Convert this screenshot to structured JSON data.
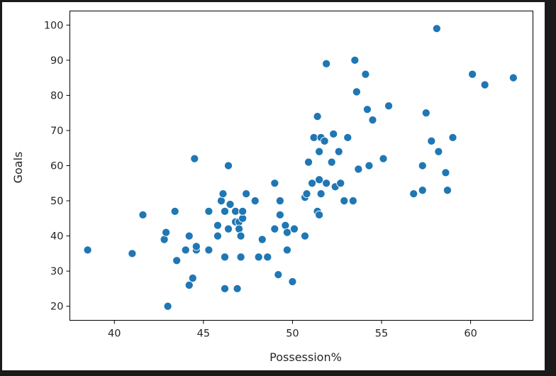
{
  "chart_data": {
    "type": "scatter",
    "title": "",
    "xlabel": "Possession%",
    "ylabel": "Goals",
    "xlim": [
      37.5,
      63.5
    ],
    "ylim": [
      16,
      104
    ],
    "xticks": [
      40,
      45,
      50,
      55,
      60
    ],
    "yticks": [
      20,
      30,
      40,
      50,
      60,
      70,
      80,
      90,
      100
    ],
    "grid": false,
    "legend": "none",
    "colors": {
      "point": "#1f77b4",
      "background": "#ffffff",
      "border": "#1a1a1a"
    },
    "points": [
      {
        "x": 38.5,
        "y": 36
      },
      {
        "x": 41.0,
        "y": 35
      },
      {
        "x": 41.6,
        "y": 46
      },
      {
        "x": 42.8,
        "y": 39
      },
      {
        "x": 42.9,
        "y": 41
      },
      {
        "x": 43.0,
        "y": 20
      },
      {
        "x": 43.4,
        "y": 47
      },
      {
        "x": 43.5,
        "y": 33
      },
      {
        "x": 44.0,
        "y": 36
      },
      {
        "x": 44.2,
        "y": 26
      },
      {
        "x": 44.2,
        "y": 40
      },
      {
        "x": 44.4,
        "y": 28
      },
      {
        "x": 44.5,
        "y": 62
      },
      {
        "x": 44.6,
        "y": 36
      },
      {
        "x": 44.6,
        "y": 37
      },
      {
        "x": 45.3,
        "y": 47
      },
      {
        "x": 45.3,
        "y": 36
      },
      {
        "x": 45.8,
        "y": 43
      },
      {
        "x": 45.8,
        "y": 40
      },
      {
        "x": 46.0,
        "y": 50
      },
      {
        "x": 46.1,
        "y": 52
      },
      {
        "x": 46.2,
        "y": 47
      },
      {
        "x": 46.2,
        "y": 34
      },
      {
        "x": 46.2,
        "y": 25
      },
      {
        "x": 46.4,
        "y": 42
      },
      {
        "x": 46.4,
        "y": 60
      },
      {
        "x": 46.5,
        "y": 49
      },
      {
        "x": 46.8,
        "y": 47
      },
      {
        "x": 46.8,
        "y": 44
      },
      {
        "x": 46.9,
        "y": 25
      },
      {
        "x": 47.0,
        "y": 44
      },
      {
        "x": 47.0,
        "y": 42
      },
      {
        "x": 47.1,
        "y": 34
      },
      {
        "x": 47.1,
        "y": 40
      },
      {
        "x": 47.2,
        "y": 45
      },
      {
        "x": 47.2,
        "y": 47
      },
      {
        "x": 47.4,
        "y": 52
      },
      {
        "x": 47.9,
        "y": 50
      },
      {
        "x": 48.1,
        "y": 34
      },
      {
        "x": 48.3,
        "y": 39
      },
      {
        "x": 48.6,
        "y": 34
      },
      {
        "x": 49.0,
        "y": 42
      },
      {
        "x": 49.0,
        "y": 55
      },
      {
        "x": 49.2,
        "y": 29
      },
      {
        "x": 49.3,
        "y": 46
      },
      {
        "x": 49.3,
        "y": 50
      },
      {
        "x": 49.6,
        "y": 43
      },
      {
        "x": 49.7,
        "y": 36
      },
      {
        "x": 49.7,
        "y": 41
      },
      {
        "x": 50.0,
        "y": 27
      },
      {
        "x": 50.1,
        "y": 42
      },
      {
        "x": 50.7,
        "y": 40
      },
      {
        "x": 50.7,
        "y": 51
      },
      {
        "x": 50.8,
        "y": 52
      },
      {
        "x": 50.9,
        "y": 61
      },
      {
        "x": 51.1,
        "y": 55
      },
      {
        "x": 51.2,
        "y": 68
      },
      {
        "x": 51.4,
        "y": 47
      },
      {
        "x": 51.4,
        "y": 74
      },
      {
        "x": 51.5,
        "y": 46
      },
      {
        "x": 51.5,
        "y": 56
      },
      {
        "x": 51.5,
        "y": 64
      },
      {
        "x": 51.6,
        "y": 68
      },
      {
        "x": 51.6,
        "y": 52
      },
      {
        "x": 51.8,
        "y": 67
      },
      {
        "x": 51.9,
        "y": 89
      },
      {
        "x": 51.9,
        "y": 55
      },
      {
        "x": 52.2,
        "y": 61
      },
      {
        "x": 52.3,
        "y": 69
      },
      {
        "x": 52.4,
        "y": 54
      },
      {
        "x": 52.6,
        "y": 64
      },
      {
        "x": 52.7,
        "y": 55
      },
      {
        "x": 52.9,
        "y": 50
      },
      {
        "x": 53.1,
        "y": 68
      },
      {
        "x": 53.4,
        "y": 50
      },
      {
        "x": 53.5,
        "y": 90
      },
      {
        "x": 53.6,
        "y": 81
      },
      {
        "x": 53.7,
        "y": 59
      },
      {
        "x": 54.1,
        "y": 86
      },
      {
        "x": 54.2,
        "y": 76
      },
      {
        "x": 54.3,
        "y": 60
      },
      {
        "x": 54.5,
        "y": 73
      },
      {
        "x": 55.1,
        "y": 62
      },
      {
        "x": 55.4,
        "y": 77
      },
      {
        "x": 56.8,
        "y": 52
      },
      {
        "x": 57.3,
        "y": 53
      },
      {
        "x": 57.3,
        "y": 60
      },
      {
        "x": 57.5,
        "y": 75
      },
      {
        "x": 57.8,
        "y": 67
      },
      {
        "x": 58.1,
        "y": 99
      },
      {
        "x": 58.2,
        "y": 64
      },
      {
        "x": 58.6,
        "y": 58
      },
      {
        "x": 58.7,
        "y": 53
      },
      {
        "x": 59.0,
        "y": 68
      },
      {
        "x": 60.1,
        "y": 86
      },
      {
        "x": 60.8,
        "y": 83
      },
      {
        "x": 62.4,
        "y": 85
      }
    ]
  }
}
